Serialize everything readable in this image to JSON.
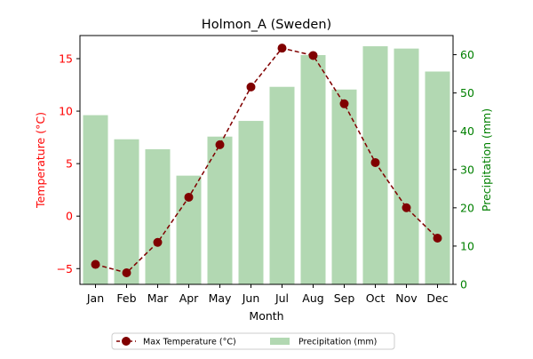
{
  "chart_data": {
    "type": "bar",
    "title": "Holmon_A (Sweden)",
    "xlabel": "Month",
    "categories": [
      "Jan",
      "Feb",
      "Mar",
      "Apr",
      "May",
      "Jun",
      "Jul",
      "Aug",
      "Sep",
      "Oct",
      "Nov",
      "Dec"
    ],
    "y_left": {
      "label": "Temperature (°C)",
      "range": [
        -6.5,
        17.2
      ],
      "ticks": [
        -5,
        0,
        5,
        10,
        15
      ],
      "color": "#ff0000"
    },
    "y_right": {
      "label": "Precipitation (mm)",
      "range": [
        0,
        65
      ],
      "ticks": [
        0,
        10,
        20,
        30,
        40,
        50,
        60
      ],
      "color": "#008000"
    },
    "series": [
      {
        "name": "Precipitation (mm)",
        "type": "bar",
        "axis": "right",
        "color": "#b2d8b2",
        "values": [
          44.2,
          37.9,
          35.3,
          28.4,
          38.6,
          42.7,
          51.6,
          59.9,
          50.9,
          62.2,
          61.6,
          55.6
        ]
      },
      {
        "name": "Max Temperature (°C)",
        "type": "line",
        "axis": "left",
        "color": "#800000",
        "line_style": "dashed",
        "marker": "circle",
        "values": [
          -4.6,
          -5.4,
          -2.5,
          1.8,
          6.8,
          12.3,
          16.0,
          15.3,
          10.7,
          5.1,
          0.8,
          -2.1
        ]
      }
    ],
    "legend": {
      "placement": "bottom-center"
    },
    "grid": false
  }
}
